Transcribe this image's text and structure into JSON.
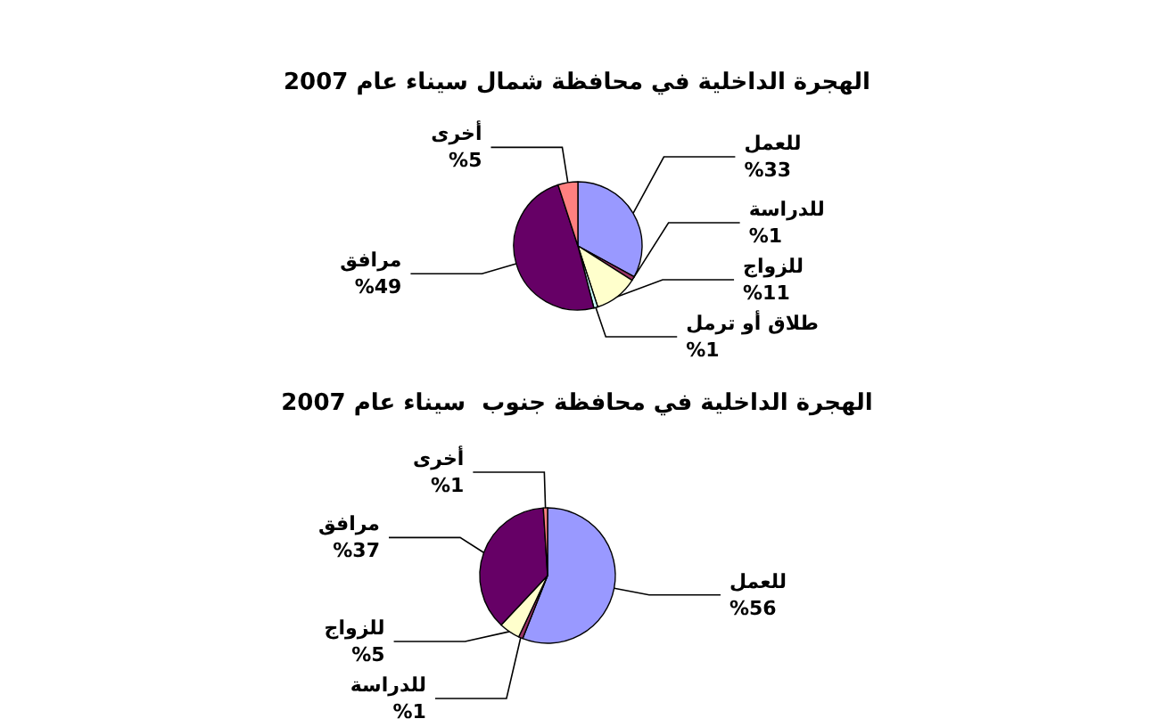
{
  "chart_data": [
    {
      "type": "pie",
      "title": "الهجرة الداخلية في محافظة شمال سيناء عام 2007",
      "categories": [
        "للعمل",
        "للدراسة",
        "للزواج",
        "طلاق أو ترمل",
        "مرافق",
        "أخرى"
      ],
      "values": [
        33,
        1,
        11,
        1,
        49,
        5
      ],
      "value_labels": [
        "%33",
        "%1",
        "%11",
        "%1",
        "%49",
        "%5"
      ],
      "colors": [
        "#9999ff",
        "#993366",
        "#ffffcc",
        "#ccffff",
        "#660066",
        "#ff8080"
      ],
      "legend": false
    },
    {
      "type": "pie",
      "title": "الهجرة الداخلية في محافظة جنوب  سيناء عام 2007",
      "categories": [
        "للعمل",
        "للدراسة",
        "للزواج",
        "مرافق",
        "أخرى"
      ],
      "values": [
        56,
        1,
        5,
        37,
        1
      ],
      "value_labels": [
        "%56",
        "%1",
        "%5",
        "%37",
        "%1"
      ],
      "colors": [
        "#9999ff",
        "#993366",
        "#ffffcc",
        "#660066",
        "#ff8080"
      ],
      "legend": false
    }
  ]
}
